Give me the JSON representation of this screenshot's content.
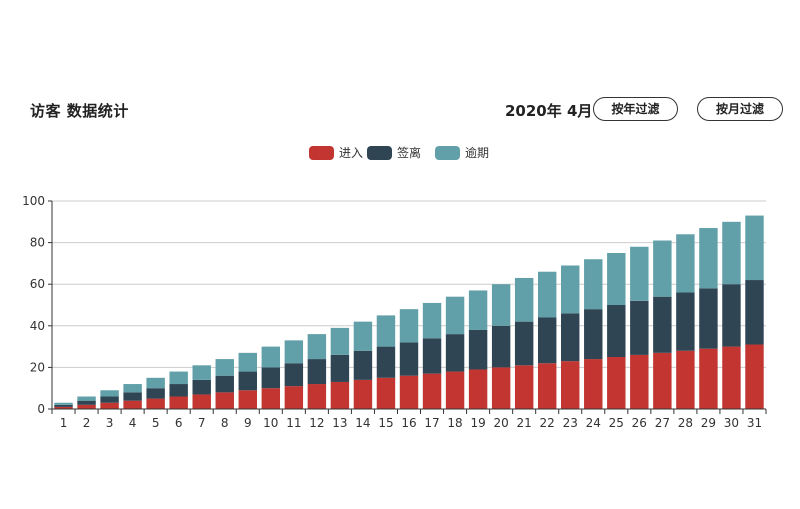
{
  "header": {
    "title": "访客 数据统计",
    "date_label": "2020年 4月",
    "filter_year_label": "按年过滤",
    "filter_month_label": "按月过滤"
  },
  "chart_data": {
    "type": "bar",
    "stacked": true,
    "title": "",
    "xlabel": "",
    "ylabel": "",
    "categories": [
      "1",
      "2",
      "3",
      "4",
      "5",
      "6",
      "7",
      "8",
      "9",
      "10",
      "11",
      "12",
      "13",
      "14",
      "15",
      "16",
      "17",
      "18",
      "19",
      "20",
      "21",
      "22",
      "23",
      "24",
      "25",
      "26",
      "27",
      "28",
      "29",
      "30",
      "31"
    ],
    "series": [
      {
        "name": "进入",
        "color": "#c23531",
        "values": [
          1,
          2,
          3,
          4,
          5,
          6,
          7,
          8,
          9,
          10,
          11,
          12,
          13,
          14,
          15,
          16,
          17,
          18,
          19,
          20,
          21,
          22,
          23,
          24,
          25,
          26,
          27,
          28,
          29,
          30,
          31
        ]
      },
      {
        "name": "签离",
        "color": "#2f4554",
        "values": [
          1,
          2,
          3,
          4,
          5,
          6,
          7,
          8,
          9,
          10,
          11,
          12,
          13,
          14,
          15,
          16,
          17,
          18,
          19,
          20,
          21,
          22,
          23,
          24,
          25,
          26,
          27,
          28,
          29,
          30,
          31
        ]
      },
      {
        "name": "逾期",
        "color": "#61a0a8",
        "values": [
          1,
          2,
          3,
          4,
          5,
          6,
          7,
          8,
          9,
          10,
          11,
          12,
          13,
          14,
          15,
          16,
          17,
          18,
          19,
          20,
          21,
          22,
          23,
          24,
          25,
          26,
          27,
          28,
          29,
          30,
          31
        ]
      }
    ],
    "ylim": [
      0,
      100
    ],
    "yticks": [
      "0",
      "20",
      "40",
      "60",
      "80",
      "100"
    ],
    "grid": true,
    "legend": "top-center"
  }
}
